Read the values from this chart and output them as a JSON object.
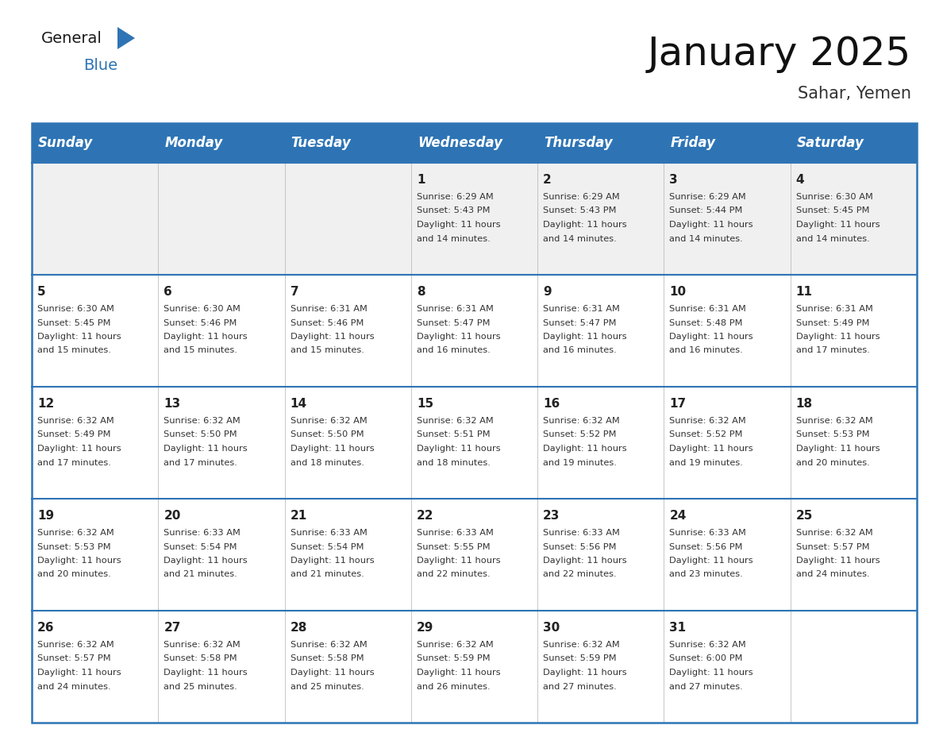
{
  "title": "January 2025",
  "subtitle": "Sahar, Yemen",
  "days_of_week": [
    "Sunday",
    "Monday",
    "Tuesday",
    "Wednesday",
    "Thursday",
    "Friday",
    "Saturday"
  ],
  "header_bg": "#2E74B5",
  "header_text_color": "#FFFFFF",
  "cell_bg_light": "#FFFFFF",
  "cell_bg_dark": "#F0F0F0",
  "border_color": "#2E74B5",
  "grid_color": "#BBBBBB",
  "text_color": "#333333",
  "day_number_color": "#222222",
  "calendar_data": [
    [
      null,
      null,
      null,
      {
        "day": 1,
        "sunrise": "6:29 AM",
        "sunset": "5:43 PM",
        "dl_line1": "Daylight: 11 hours",
        "dl_line2": "and 14 minutes."
      },
      {
        "day": 2,
        "sunrise": "6:29 AM",
        "sunset": "5:43 PM",
        "dl_line1": "Daylight: 11 hours",
        "dl_line2": "and 14 minutes."
      },
      {
        "day": 3,
        "sunrise": "6:29 AM",
        "sunset": "5:44 PM",
        "dl_line1": "Daylight: 11 hours",
        "dl_line2": "and 14 minutes."
      },
      {
        "day": 4,
        "sunrise": "6:30 AM",
        "sunset": "5:45 PM",
        "dl_line1": "Daylight: 11 hours",
        "dl_line2": "and 14 minutes."
      }
    ],
    [
      {
        "day": 5,
        "sunrise": "6:30 AM",
        "sunset": "5:45 PM",
        "dl_line1": "Daylight: 11 hours",
        "dl_line2": "and 15 minutes."
      },
      {
        "day": 6,
        "sunrise": "6:30 AM",
        "sunset": "5:46 PM",
        "dl_line1": "Daylight: 11 hours",
        "dl_line2": "and 15 minutes."
      },
      {
        "day": 7,
        "sunrise": "6:31 AM",
        "sunset": "5:46 PM",
        "dl_line1": "Daylight: 11 hours",
        "dl_line2": "and 15 minutes."
      },
      {
        "day": 8,
        "sunrise": "6:31 AM",
        "sunset": "5:47 PM",
        "dl_line1": "Daylight: 11 hours",
        "dl_line2": "and 16 minutes."
      },
      {
        "day": 9,
        "sunrise": "6:31 AM",
        "sunset": "5:47 PM",
        "dl_line1": "Daylight: 11 hours",
        "dl_line2": "and 16 minutes."
      },
      {
        "day": 10,
        "sunrise": "6:31 AM",
        "sunset": "5:48 PM",
        "dl_line1": "Daylight: 11 hours",
        "dl_line2": "and 16 minutes."
      },
      {
        "day": 11,
        "sunrise": "6:31 AM",
        "sunset": "5:49 PM",
        "dl_line1": "Daylight: 11 hours",
        "dl_line2": "and 17 minutes."
      }
    ],
    [
      {
        "day": 12,
        "sunrise": "6:32 AM",
        "sunset": "5:49 PM",
        "dl_line1": "Daylight: 11 hours",
        "dl_line2": "and 17 minutes."
      },
      {
        "day": 13,
        "sunrise": "6:32 AM",
        "sunset": "5:50 PM",
        "dl_line1": "Daylight: 11 hours",
        "dl_line2": "and 17 minutes."
      },
      {
        "day": 14,
        "sunrise": "6:32 AM",
        "sunset": "5:50 PM",
        "dl_line1": "Daylight: 11 hours",
        "dl_line2": "and 18 minutes."
      },
      {
        "day": 15,
        "sunrise": "6:32 AM",
        "sunset": "5:51 PM",
        "dl_line1": "Daylight: 11 hours",
        "dl_line2": "and 18 minutes."
      },
      {
        "day": 16,
        "sunrise": "6:32 AM",
        "sunset": "5:52 PM",
        "dl_line1": "Daylight: 11 hours",
        "dl_line2": "and 19 minutes."
      },
      {
        "day": 17,
        "sunrise": "6:32 AM",
        "sunset": "5:52 PM",
        "dl_line1": "Daylight: 11 hours",
        "dl_line2": "and 19 minutes."
      },
      {
        "day": 18,
        "sunrise": "6:32 AM",
        "sunset": "5:53 PM",
        "dl_line1": "Daylight: 11 hours",
        "dl_line2": "and 20 minutes."
      }
    ],
    [
      {
        "day": 19,
        "sunrise": "6:32 AM",
        "sunset": "5:53 PM",
        "dl_line1": "Daylight: 11 hours",
        "dl_line2": "and 20 minutes."
      },
      {
        "day": 20,
        "sunrise": "6:33 AM",
        "sunset": "5:54 PM",
        "dl_line1": "Daylight: 11 hours",
        "dl_line2": "and 21 minutes."
      },
      {
        "day": 21,
        "sunrise": "6:33 AM",
        "sunset": "5:54 PM",
        "dl_line1": "Daylight: 11 hours",
        "dl_line2": "and 21 minutes."
      },
      {
        "day": 22,
        "sunrise": "6:33 AM",
        "sunset": "5:55 PM",
        "dl_line1": "Daylight: 11 hours",
        "dl_line2": "and 22 minutes."
      },
      {
        "day": 23,
        "sunrise": "6:33 AM",
        "sunset": "5:56 PM",
        "dl_line1": "Daylight: 11 hours",
        "dl_line2": "and 22 minutes."
      },
      {
        "day": 24,
        "sunrise": "6:33 AM",
        "sunset": "5:56 PM",
        "dl_line1": "Daylight: 11 hours",
        "dl_line2": "and 23 minutes."
      },
      {
        "day": 25,
        "sunrise": "6:32 AM",
        "sunset": "5:57 PM",
        "dl_line1": "Daylight: 11 hours",
        "dl_line2": "and 24 minutes."
      }
    ],
    [
      {
        "day": 26,
        "sunrise": "6:32 AM",
        "sunset": "5:57 PM",
        "dl_line1": "Daylight: 11 hours",
        "dl_line2": "and 24 minutes."
      },
      {
        "day": 27,
        "sunrise": "6:32 AM",
        "sunset": "5:58 PM",
        "dl_line1": "Daylight: 11 hours",
        "dl_line2": "and 25 minutes."
      },
      {
        "day": 28,
        "sunrise": "6:32 AM",
        "sunset": "5:58 PM",
        "dl_line1": "Daylight: 11 hours",
        "dl_line2": "and 25 minutes."
      },
      {
        "day": 29,
        "sunrise": "6:32 AM",
        "sunset": "5:59 PM",
        "dl_line1": "Daylight: 11 hours",
        "dl_line2": "and 26 minutes."
      },
      {
        "day": 30,
        "sunrise": "6:32 AM",
        "sunset": "5:59 PM",
        "dl_line1": "Daylight: 11 hours",
        "dl_line2": "and 27 minutes."
      },
      {
        "day": 31,
        "sunrise": "6:32 AM",
        "sunset": "6:00 PM",
        "dl_line1": "Daylight: 11 hours",
        "dl_line2": "and 27 minutes."
      },
      null
    ]
  ],
  "logo_general_color": "#1A1A1A",
  "logo_blue_color": "#2E74B5",
  "title_fontsize": 36,
  "subtitle_fontsize": 15,
  "header_fontsize": 12,
  "day_num_fontsize": 11,
  "cell_text_fontsize": 8.2
}
